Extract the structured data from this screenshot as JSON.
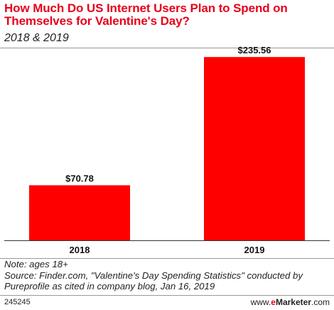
{
  "chart_data": {
    "type": "bar",
    "title": "How Much Do US Internet Users Plan to Spend on Themselves for Valentine's Day?",
    "subtitle": "2018 & 2019",
    "categories": [
      "2018",
      "2019"
    ],
    "values": [
      70.78,
      235.56
    ],
    "data_labels": [
      "$70.78",
      "$235.56"
    ],
    "ylim": [
      0,
      265
    ],
    "grid": false,
    "bar_color": "#ff0000"
  },
  "notes": {
    "note": "Note: ages 18+",
    "source_line1": "Source: Finder.com, \"Valentine's Day Spending Statistics\" conducted by",
    "source_line2": "Pureprofile as cited in company blog, Jan 16, 2019"
  },
  "footer": {
    "chart_id": "245245",
    "brand_prefix": "www.",
    "brand_e": "e",
    "brand_rest": "Marketer",
    "brand_suffix": ".com"
  }
}
